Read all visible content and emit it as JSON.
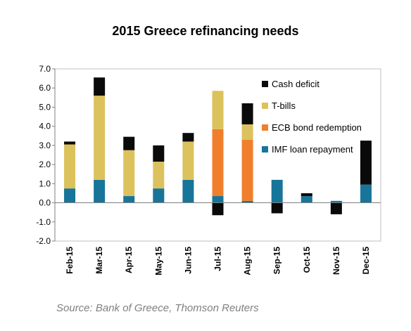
{
  "chart_data": {
    "type": "bar",
    "stacked": true,
    "title": "2015 Greece refinancing needs",
    "xlabel": "",
    "ylabel": "",
    "ylim": [
      -2.0,
      7.0
    ],
    "yticks": [
      "7.0",
      "6.0",
      "5.0",
      "4.0",
      "3.0",
      "2.0",
      "1.0",
      "0.0",
      "-1.0",
      "-2.0"
    ],
    "categories": [
      "Feb-15",
      "Mar-15",
      "Apr-15",
      "May-15",
      "Jun-15",
      "Jul-15",
      "Aug-15",
      "Sep-15",
      "Oct-15",
      "Nov-15",
      "Dec-15"
    ],
    "series": [
      {
        "name": "IMF loan repayment",
        "color": "#17759a",
        "values": [
          0.75,
          1.2,
          0.35,
          0.75,
          1.2,
          0.35,
          0.1,
          1.2,
          0.35,
          0.1,
          0.95
        ]
      },
      {
        "name": "ECB bond redemption",
        "color": "#f07f2c",
        "values": [
          0,
          0,
          0,
          0,
          0,
          3.5,
          3.2,
          0,
          0,
          0,
          0
        ]
      },
      {
        "name": "T-bills",
        "color": "#dcc25c",
        "values": [
          2.3,
          4.4,
          2.4,
          1.4,
          2.0,
          2.0,
          0.8,
          0,
          0,
          0,
          0
        ]
      },
      {
        "name": "Cash deficit",
        "color": "#0a0a0a",
        "values": [
          0.15,
          0.95,
          0.7,
          0.85,
          0.45,
          -0.65,
          1.1,
          -0.55,
          0.15,
          -0.6,
          2.3
        ]
      }
    ],
    "legend_position": "top-right",
    "grid": false,
    "source": "Source: Bank of Greece, Thomson Reuters"
  }
}
